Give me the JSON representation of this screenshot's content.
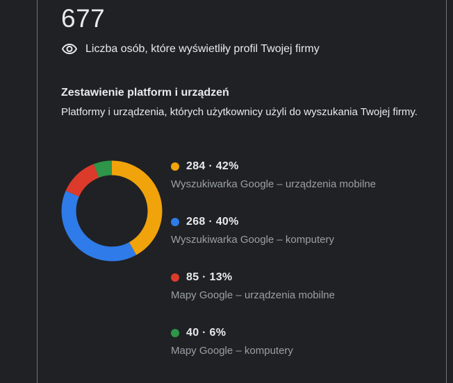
{
  "page": {
    "background": "#202124",
    "divider_color": "#6E7276",
    "text_primary": "#E8EAED",
    "text_secondary": "#9AA0A6"
  },
  "header": {
    "views_count": "677",
    "views_label": "Liczba osób, które wyświetliły profil Twojej firmy"
  },
  "section": {
    "title": "Zestawienie platform i urządzeń",
    "description": "Platformy i urządzenia, których użytkownicy użyli do wyszukania Twojej firmy."
  },
  "legend_separator": "·",
  "chart_data": {
    "type": "pie",
    "subtype": "donut",
    "title": "Zestawienie platform i urządzeń",
    "total": 677,
    "start_angle_deg": -90,
    "direction": "clockwise",
    "legend_position": "right",
    "segments": [
      {
        "label": "Wyszukiwarka Google – urządzenia mobilne",
        "value": 284,
        "percent": "42%",
        "color": "#F0A30B"
      },
      {
        "label": "Wyszukiwarka Google – komputery",
        "value": 268,
        "percent": "40%",
        "color": "#2E7BE9"
      },
      {
        "label": "Mapy Google – urządzenia mobilne",
        "value": 85,
        "percent": "13%",
        "color": "#DC3B2C"
      },
      {
        "label": "Mapy Google – komputery",
        "value": 40,
        "percent": "6%",
        "color": "#2E9549"
      }
    ]
  }
}
